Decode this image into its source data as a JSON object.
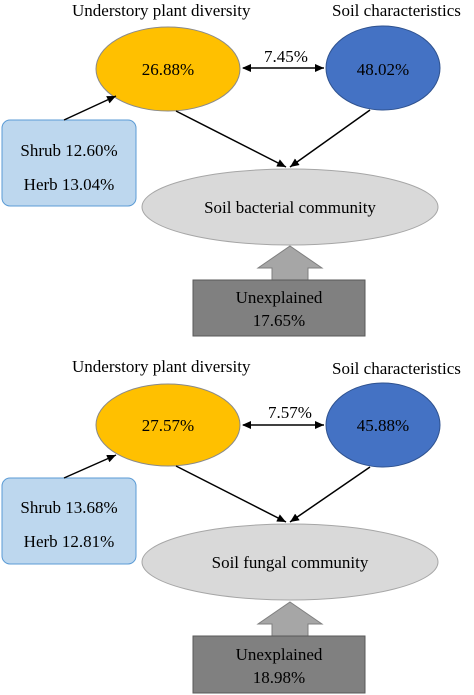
{
  "panels": [
    {
      "plant_title": "Understory plant diversity",
      "soil_title": "Soil characteristics",
      "plant_value": "26.88%",
      "soil_value": "48.02%",
      "shared_value": "7.45%",
      "shrub": "Shrub 12.60%",
      "herb": "Herb 13.04%",
      "community": "Soil bacterial community",
      "unexplained_label": "Unexplained",
      "unexplained_value": "17.65%"
    },
    {
      "plant_title": "Understory plant diversity",
      "soil_title": "Soil characteristics",
      "plant_value": "27.57%",
      "soil_value": "45.88%",
      "shared_value": "7.57%",
      "shrub": "Shrub 13.68%",
      "herb": "Herb 12.81%",
      "community": "Soil fungal community",
      "unexplained_label": "Unexplained",
      "unexplained_value": "18.98%"
    }
  ],
  "colors": {
    "plant_fill": "#FFC000",
    "soil_fill": "#4472C4",
    "community_fill": "#D9D9D9",
    "understory_box_fill": "#BDD7EE",
    "unexplained_fill": "#808080",
    "arrow_fill": "#A6A6A6"
  }
}
